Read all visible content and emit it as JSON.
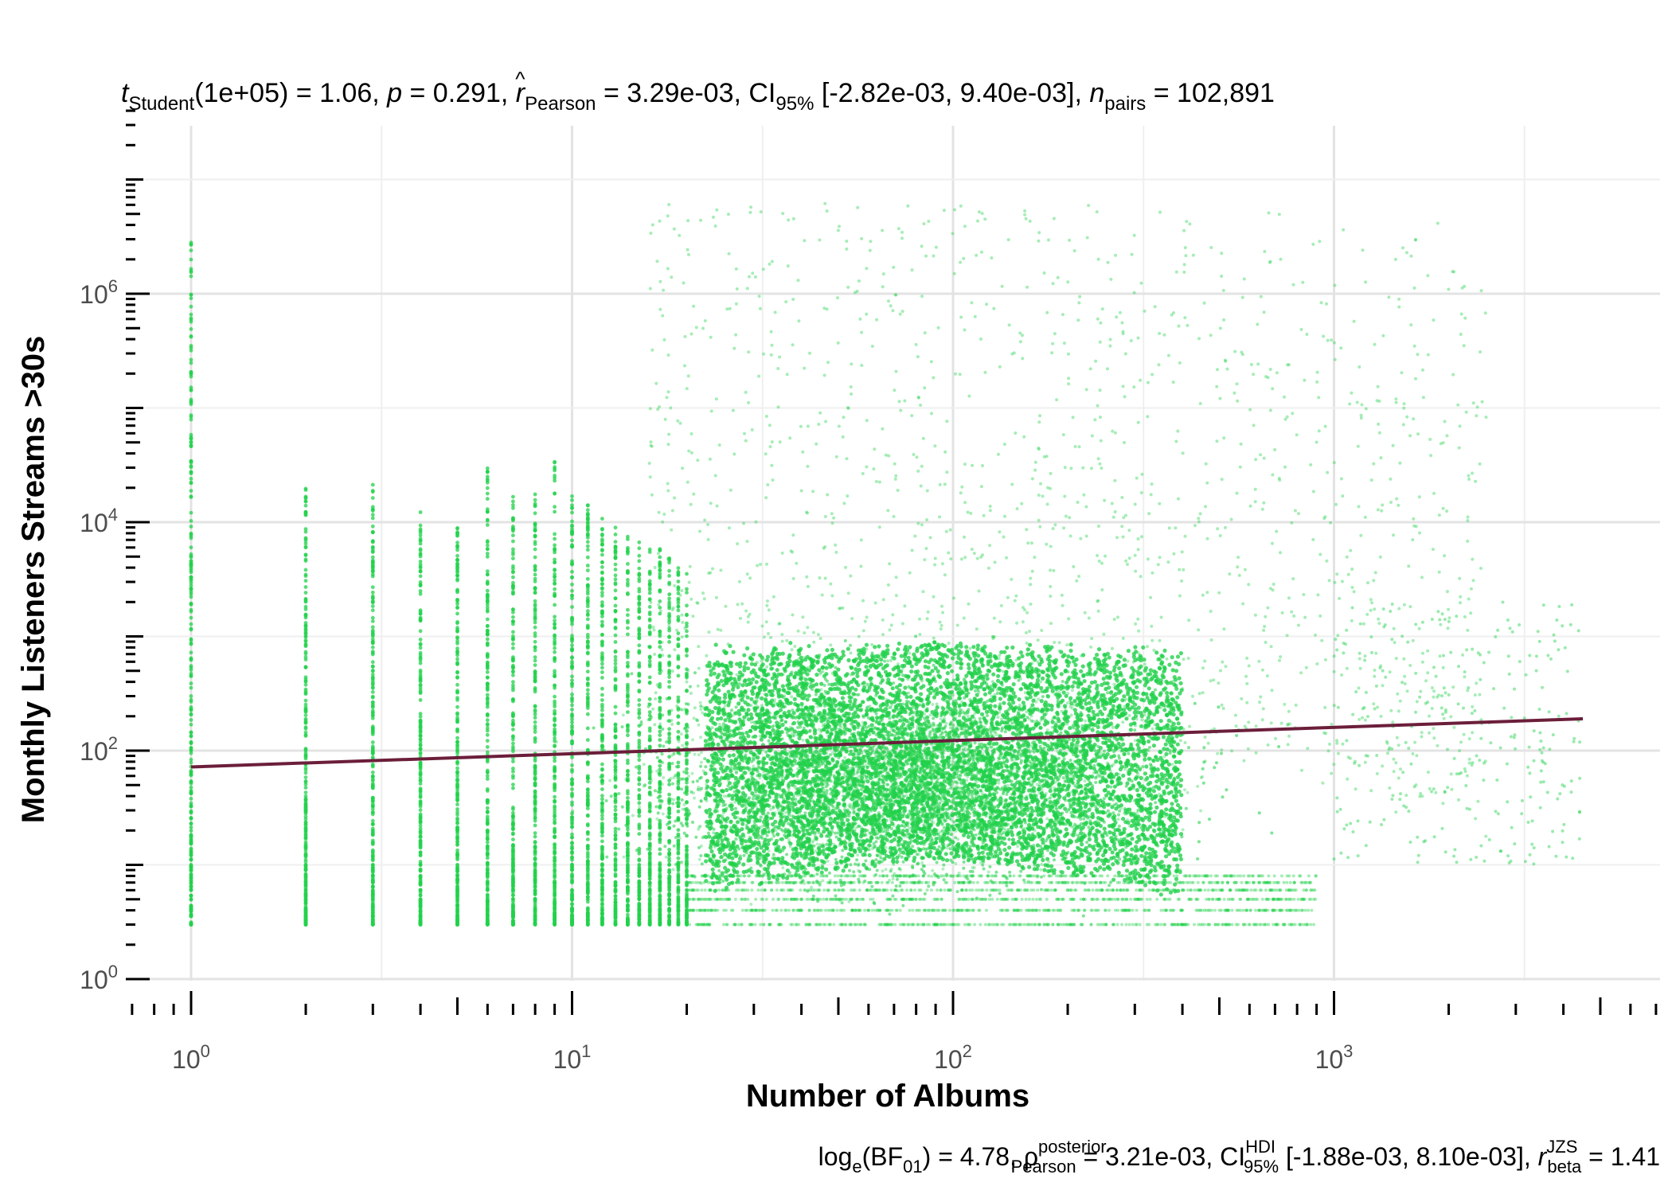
{
  "chart_data": {
    "type": "scatter",
    "title": {
      "t_sym": "t",
      "t_sub": "Student",
      "t_val": "(1e+05) = 1.06, ",
      "p_sym": "p",
      "p_val": " = 0.291, ",
      "r_sym": "r",
      "r_hat": "^",
      "r_sub": "Pearson",
      "r_val": " = 3.29e-03, CI",
      "ci_sub": "95%",
      "ci_val": " [-2.82e-03, 9.40e-03], ",
      "n_sym": "n",
      "n_sub": "pairs",
      "n_val": " = 102,891"
    },
    "subtitle": {
      "log": "log",
      "log_sub": "e",
      "bf": "(BF",
      "bf_sub": "01",
      "bf_val": ") = 4.78, ",
      "rho": "ρ",
      "rho_hat": "^",
      "rho_sup": "posterior",
      "rho_sub": "Pearson",
      "rho_val": " = 3.21e-03, CI",
      "ci_sup": "HDI",
      "ci_sub": "95%",
      "ci_val": " [-1.88e-03, 8.10e-03], ",
      "r": "r",
      "r_sup": "JZS",
      "r_sub": "beta",
      "r_val": " = 1.41"
    },
    "xlabel": "Number of Albums",
    "ylabel": "Monthly Listeners Streams >30s",
    "x_scale": "log10",
    "y_scale": "log10",
    "xlim": [
      0.72,
      6000
    ],
    "ylim": [
      0.85,
      20000000
    ],
    "x_ticks": [
      {
        "value": 1,
        "base": "10",
        "exp": "0"
      },
      {
        "value": 10,
        "base": "10",
        "exp": "1"
      },
      {
        "value": 100,
        "base": "10",
        "exp": "2"
      },
      {
        "value": 1000,
        "base": "10",
        "exp": "3"
      }
    ],
    "y_ticks": [
      {
        "value": 1,
        "base": "10",
        "exp": "0"
      },
      {
        "value": 100,
        "base": "10",
        "exp": "2"
      },
      {
        "value": 10000,
        "base": "10",
        "exp": "4"
      },
      {
        "value": 1000000,
        "base": "10",
        "exp": "6"
      }
    ],
    "grid": true,
    "point_color": "#22d14b",
    "line_color": "#6b1e3a",
    "regression_line": {
      "x": [
        1,
        4500
      ],
      "y": [
        72,
        190
      ]
    },
    "point_sample": {
      "count_displayed": 102891,
      "column_x_values": [
        1,
        2,
        3,
        4,
        5,
        6,
        7,
        8,
        9,
        10,
        11,
        12,
        13,
        14,
        15,
        16,
        17,
        18,
        19,
        20
      ],
      "column_top_y": [
        3000000,
        22000,
        22000,
        13000,
        14000,
        30000,
        18000,
        22000,
        35000,
        17000,
        15000,
        12000,
        9000,
        8000,
        7000,
        6000,
        6000,
        5000,
        5000,
        5000
      ],
      "min_y": 3,
      "dense_core_y_range": [
        5,
        2000
      ],
      "dense_core_x_range": [
        20,
        400
      ],
      "max_x": 4500,
      "max_y": 9500000
    }
  }
}
